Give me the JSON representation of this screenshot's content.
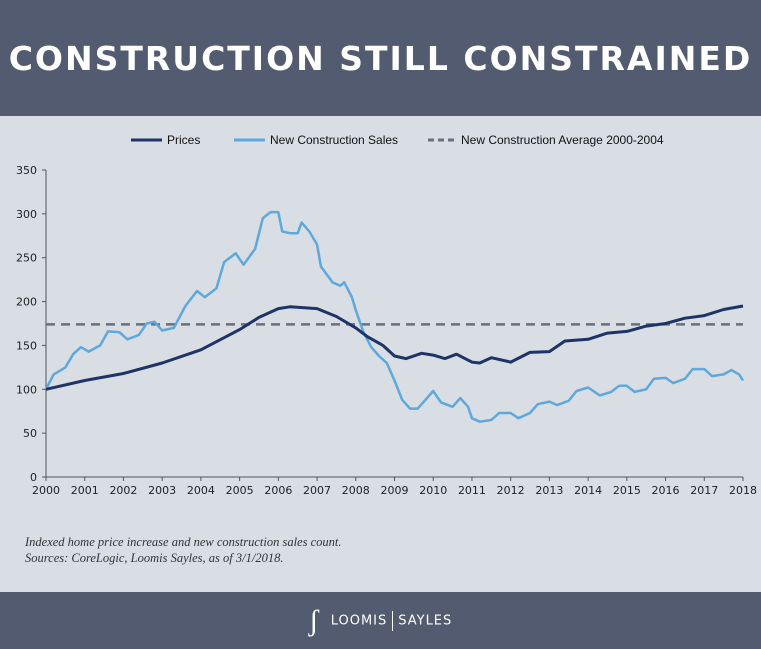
{
  "header": {
    "title": "CONSTRUCTION STILL CONSTRAINED"
  },
  "notes": [
    "Indexed home price increase and new construction sales count.",
    "Sources: CoreLogic, Loomis Sayles, as of 3/1/2018."
  ],
  "footer": {
    "logo_mark": "LS",
    "brand_left": "LOOMIS",
    "brand_right": "SAYLES"
  },
  "chart_data": {
    "type": "line",
    "title": "",
    "xlabel": "",
    "ylabel": "",
    "xlim": [
      2000,
      2018
    ],
    "ylim": [
      0,
      350
    ],
    "xticks": [
      2000,
      2001,
      2002,
      2003,
      2004,
      2005,
      2006,
      2007,
      2008,
      2009,
      2010,
      2011,
      2012,
      2013,
      2014,
      2015,
      2016,
      2017,
      2018
    ],
    "yticks": [
      0,
      50,
      100,
      150,
      200,
      250,
      300,
      350
    ],
    "grid": false,
    "legend_position": "top",
    "series": [
      {
        "name": "Prices",
        "color": "#1f3466",
        "style": "solid",
        "x": [
          2000,
          2001,
          2002,
          2003,
          2004,
          2005,
          2005.5,
          2006,
          2006.3,
          2007,
          2007.5,
          2008,
          2008.3,
          2008.7,
          2009,
          2009.3,
          2009.7,
          2010,
          2010.3,
          2010.6,
          2011,
          2011.2,
          2011.5,
          2012,
          2012.5,
          2013,
          2013.4,
          2014,
          2014.5,
          2015,
          2015.5,
          2016,
          2016.5,
          2017,
          2017.5,
          2018
        ],
        "y": [
          100,
          110,
          118,
          130,
          145,
          168,
          182,
          192,
          194,
          192,
          183,
          170,
          160,
          150,
          138,
          135,
          141,
          139,
          135,
          140,
          131,
          130,
          136,
          131,
          142,
          143,
          155,
          157,
          164,
          166,
          172,
          175,
          181,
          184,
          191,
          195
        ]
      },
      {
        "name": "New Construction Sales",
        "color": "#5ea8dc",
        "style": "solid",
        "x": [
          2000,
          2000.2,
          2000.5,
          2000.7,
          2000.9,
          2001.1,
          2001.4,
          2001.6,
          2001.9,
          2002.1,
          2002.4,
          2002.6,
          2002.8,
          2003,
          2003.3,
          2003.6,
          2003.9,
          2004.1,
          2004.4,
          2004.6,
          2004.9,
          2005.1,
          2005.4,
          2005.6,
          2005.8,
          2006,
          2006.1,
          2006.3,
          2006.5,
          2006.6,
          2006.8,
          2007,
          2007.1,
          2007.4,
          2007.6,
          2007.7,
          2007.9,
          2008,
          2008.2,
          2008.4,
          2008.6,
          2008.8,
          2009,
          2009.2,
          2009.4,
          2009.6,
          2009.8,
          2010,
          2010.2,
          2010.5,
          2010.7,
          2010.9,
          2011,
          2011.2,
          2011.5,
          2011.7,
          2012,
          2012.2,
          2012.5,
          2012.7,
          2013,
          2013.2,
          2013.5,
          2013.7,
          2014,
          2014.3,
          2014.6,
          2014.8,
          2015,
          2015.2,
          2015.5,
          2015.7,
          2016,
          2016.2,
          2016.5,
          2016.7,
          2017,
          2017.2,
          2017.5,
          2017.7,
          2017.9,
          2018
        ],
        "y": [
          100,
          117,
          125,
          140,
          148,
          143,
          150,
          166,
          165,
          157,
          162,
          175,
          177,
          167,
          170,
          195,
          212,
          205,
          215,
          245,
          255,
          242,
          260,
          295,
          302,
          302,
          280,
          278,
          278,
          290,
          280,
          265,
          240,
          222,
          218,
          222,
          205,
          190,
          165,
          148,
          138,
          130,
          110,
          88,
          78,
          78,
          88,
          98,
          85,
          80,
          90,
          80,
          67,
          63,
          65,
          73,
          73,
          67,
          73,
          83,
          86,
          82,
          87,
          98,
          102,
          93,
          97,
          104,
          104,
          97,
          100,
          112,
          113,
          107,
          112,
          123,
          123,
          115,
          117,
          122,
          117,
          110
        ]
      },
      {
        "name": "New Construction Average 2000-2004",
        "color": "#6b6f7a",
        "style": "dashed",
        "value": 174
      }
    ]
  }
}
